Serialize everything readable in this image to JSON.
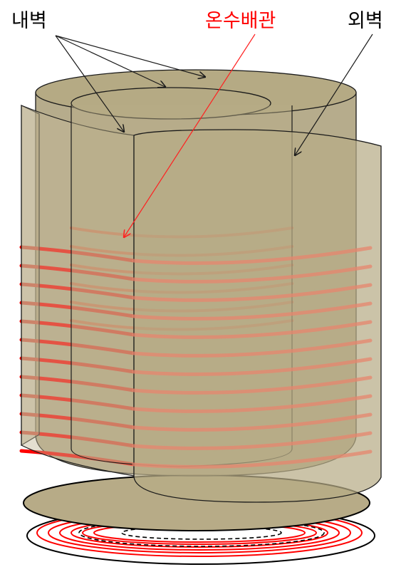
{
  "labels": {
    "inner_wall": "내벽",
    "hot_water_pipe": "온수배관",
    "outer_wall": "외벽"
  },
  "colors": {
    "wall_fill": "#b3a682",
    "wall_fill_light": "#c7bc98",
    "pipe": "#ff0000",
    "pipe_faded": "#e8866e",
    "outline": "#1a1a1a",
    "label_text": "#000000",
    "label_accent": "#ff0000",
    "dashed_ring": "#000000"
  },
  "components": {
    "pipe_loops_visible": 12,
    "base_red_rings": 6,
    "base_dashed_rings": 2
  }
}
